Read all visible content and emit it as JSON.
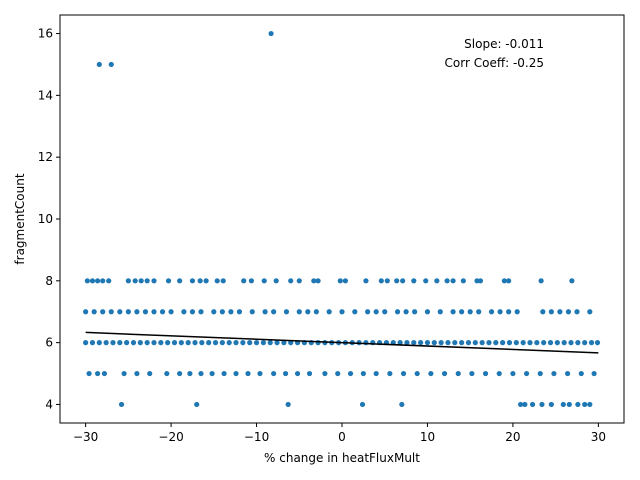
{
  "chart_data": {
    "type": "scatter",
    "xlabel": "% change in heatFluxMult",
    "ylabel": "fragmentCount",
    "xlim": [
      -33.0,
      33.0
    ],
    "ylim": [
      3.4,
      16.6
    ],
    "xticks": [
      -30,
      -20,
      -10,
      0,
      10,
      20,
      30
    ],
    "yticks": [
      4,
      6,
      8,
      10,
      12,
      14,
      16
    ],
    "xtick_labels": [
      "−30",
      "−20",
      "−10",
      "0",
      "10",
      "20",
      "30"
    ],
    "ytick_labels": [
      "4",
      "6",
      "8",
      "10",
      "12",
      "14",
      "16"
    ],
    "grid": false,
    "point_color": "#1f77b4",
    "line_color": "#000000",
    "annotations": {
      "slope": "Slope: -0.011",
      "corr": "Corr Coeff: -0.25"
    },
    "fit_line": {
      "x": [
        -30,
        30
      ],
      "y": [
        6.33,
        5.67
      ]
    },
    "outliers": [
      {
        "x": -28.4,
        "y": 15
      },
      {
        "x": -27.0,
        "y": 15
      },
      {
        "x": -8.3,
        "y": 16
      }
    ],
    "points_by_level": [
      {
        "y": 4,
        "x": [
          -25.8,
          -17.0,
          -6.3,
          2.4,
          7.0,
          20.9,
          21.4,
          22.3,
          23.4,
          24.5,
          25.9,
          26.6,
          27.6,
          28.4,
          29.0
        ]
      },
      {
        "y": 5,
        "x": [
          -29.6,
          -28.6,
          -27.8,
          -25.5,
          -24.0,
          -22.5,
          -20.5,
          -19.0,
          -17.8,
          -16.5,
          -15.2,
          -13.8,
          -12.4,
          -11.0,
          -9.6,
          -8.0,
          -6.6,
          -5.2,
          -3.8,
          -2.0,
          -0.5,
          1.0,
          2.5,
          4.0,
          5.6,
          7.2,
          8.8,
          10.4,
          12.0,
          13.6,
          15.2,
          16.8,
          18.4,
          20.0,
          21.6,
          23.2,
          24.8,
          26.4,
          28.0,
          29.5
        ]
      },
      {
        "y": 6,
        "x": [
          -30.0,
          -29.2,
          -28.4,
          -27.6,
          -26.8,
          -26.0,
          -25.2,
          -24.4,
          -23.6,
          -22.8,
          -22.0,
          -21.2,
          -20.4,
          -19.6,
          -18.8,
          -18.0,
          -17.2,
          -16.4,
          -15.6,
          -14.8,
          -14.0,
          -13.2,
          -12.4,
          -11.6,
          -10.8,
          -10.0,
          -9.2,
          -8.4,
          -7.6,
          -6.8,
          -6.0,
          -5.2,
          -4.4,
          -3.6,
          -2.8,
          -2.0,
          -1.2,
          -0.4,
          0.4,
          1.2,
          2.0,
          2.8,
          3.6,
          4.4,
          5.2,
          6.0,
          6.8,
          7.6,
          8.4,
          9.2,
          10.0,
          10.8,
          11.6,
          12.4,
          13.2,
          14.0,
          14.8,
          15.6,
          16.4,
          17.2,
          18.0,
          18.8,
          19.6,
          20.4,
          21.2,
          22.0,
          22.8,
          23.6,
          24.4,
          25.2,
          26.0,
          26.8,
          27.6,
          28.4,
          29.2,
          29.9
        ]
      },
      {
        "y": 7,
        "x": [
          -30.0,
          -29.0,
          -28.0,
          -27.0,
          -26.0,
          -25.0,
          -24.0,
          -23.0,
          -22.0,
          -21.0,
          -20.0,
          -18.5,
          -17.5,
          -16.5,
          -15.0,
          -14.0,
          -13.0,
          -12.0,
          -10.5,
          -9.0,
          -8.0,
          -6.5,
          -5.0,
          -4.0,
          -3.0,
          -1.5,
          0.0,
          1.5,
          3.0,
          4.0,
          5.0,
          6.5,
          7.5,
          8.5,
          10.0,
          11.5,
          13.0,
          14.0,
          15.0,
          16.0,
          17.5,
          18.5,
          19.5,
          20.5,
          23.5,
          24.5,
          25.5,
          26.5,
          27.5,
          29.0
        ]
      },
      {
        "y": 8,
        "x": [
          -29.8,
          -29.2,
          -28.6,
          -28.0,
          -27.3,
          -25.0,
          -24.2,
          -23.5,
          -22.8,
          -22.0,
          -20.3,
          -19.0,
          -17.5,
          -16.6,
          -15.9,
          -14.6,
          -13.9,
          -11.5,
          -10.6,
          -9.1,
          -7.7,
          -6.0,
          -5.0,
          -3.3,
          -2.8,
          -0.2,
          0.4,
          2.8,
          4.6,
          5.3,
          6.4,
          7.1,
          8.4,
          9.8,
          11.1,
          12.3,
          13.0,
          14.2,
          15.8,
          16.2,
          19.0,
          19.5,
          23.3,
          26.9
        ]
      }
    ]
  }
}
